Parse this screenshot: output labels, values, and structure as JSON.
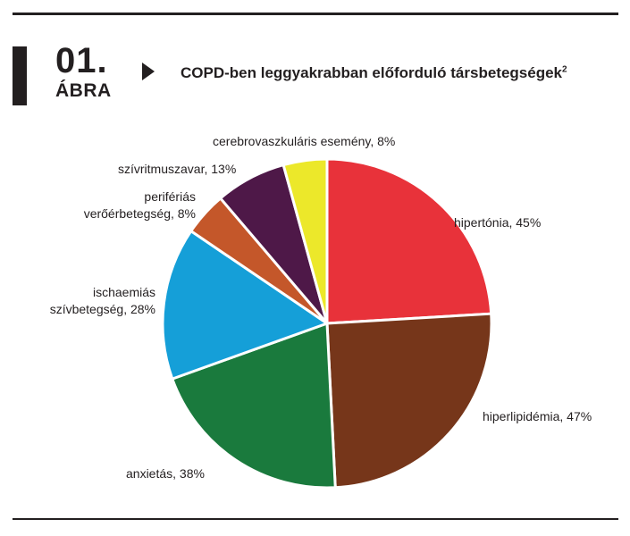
{
  "figure": {
    "number": "01.",
    "word": "ÁBRA",
    "title": "COPD-ben leggyakrabban előforduló társbetegségek",
    "title_sup": "2"
  },
  "chart_data": {
    "type": "pie",
    "title": "COPD-ben leggyakrabban előforduló társbetegségek",
    "categories": [
      "hipertónia",
      "hiperlipidémia",
      "anxietás",
      "ischaemiás szívbetegség",
      "perifériás verőérbetegség",
      "szívritmuszavar",
      "cerebrovaszkuláris esemény"
    ],
    "values": [
      45,
      47,
      38,
      28,
      8,
      13,
      8
    ],
    "colors": [
      "#e8323a",
      "#76361a",
      "#1a7a3d",
      "#159fd8",
      "#c4572a",
      "#4e1848",
      "#ece82a"
    ],
    "labels": [
      {
        "lines": [
          "hipertónia, 45%"
        ]
      },
      {
        "lines": [
          "hiperlipidémia, 47%"
        ]
      },
      {
        "lines": [
          "anxietás, 38%"
        ]
      },
      {
        "lines": [
          "ischaemiás",
          "szívbetegség, 28%"
        ]
      },
      {
        "lines": [
          "perifériás",
          "verőérbetegség, 8%"
        ]
      },
      {
        "lines": [
          "szívritmuszavar, 13%"
        ]
      },
      {
        "lines": [
          "cerebrovaszkuláris esemény, 8%"
        ]
      }
    ]
  }
}
